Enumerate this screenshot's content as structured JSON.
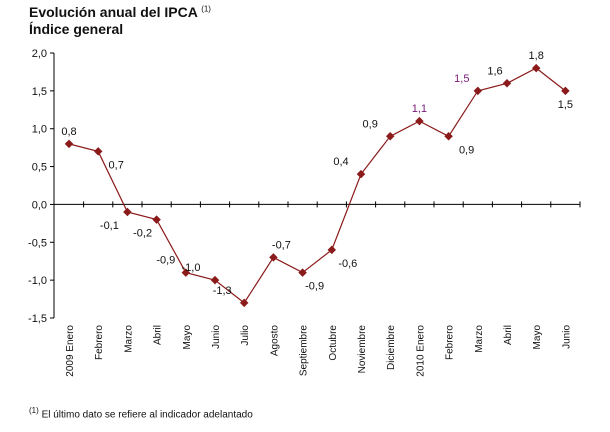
{
  "chart_data": {
    "type": "line",
    "title": "Evolución anual del IPCA",
    "title_note": "(1)",
    "subtitle": "Índice general",
    "categories": [
      "2009 Enero",
      "Febrero",
      "Marzo",
      "Abril",
      "Mayo",
      "Junio",
      "Julio",
      "Agosto",
      "Septiembre",
      "Octubre",
      "Noviembre",
      "Diciembre",
      "2010 Enero",
      "Febrero",
      "Marzo",
      "Abril",
      "Mayo",
      "Junio"
    ],
    "series": [
      {
        "values": [
          0.8,
          0.7,
          -0.1,
          -0.2,
          -0.9,
          -1.0,
          -1.3,
          -0.7,
          -0.9,
          -0.6,
          0.4,
          0.9,
          1.1,
          0.9,
          1.5,
          1.6,
          1.8,
          1.5
        ],
        "color": "#8b1a1a"
      }
    ],
    "data_labels": [
      "0,8",
      "0,7",
      "-0,1",
      "-0,2",
      "-0,9",
      "-1,0",
      "-1,3",
      "-0,7",
      "-0,9",
      "-0,6",
      "0,4",
      "0,9",
      "1,1",
      "0,9",
      "1,5",
      "1,6",
      "1,8",
      "1,5"
    ],
    "ylim": [
      -1.5,
      2.0
    ],
    "yticks": [
      "2,0",
      "1,5",
      "1,0",
      "0,5",
      "0,0",
      "-0,5",
      "-1,0",
      "-1,5"
    ],
    "grid": false,
    "footnote_mark": "(1)",
    "footnote": "El último dato se refiere al indicador adelantado"
  }
}
